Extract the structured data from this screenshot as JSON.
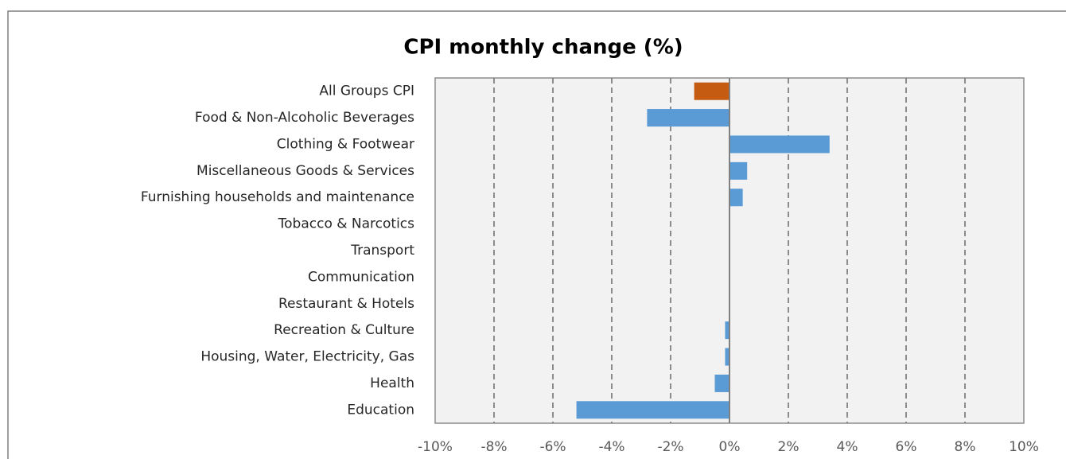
{
  "chart_data": {
    "type": "bar",
    "orientation": "horizontal",
    "title": "CPI monthly change (%)",
    "categories": [
      "All Groups CPI",
      "Food & Non-Alcoholic Beverages",
      "Clothing & Footwear",
      "Miscellaneous Goods & Services",
      "Furnishing households and maintenance",
      "Tobacco & Narcotics",
      "Transport",
      "Communication",
      "Restaurant & Hotels",
      "Recreation & Culture",
      "Housing, Water, Electricity, Gas",
      "Health",
      "Education"
    ],
    "values": [
      -1.2,
      -2.8,
      3.4,
      0.6,
      0.45,
      0,
      0,
      0,
      0,
      -0.15,
      -0.15,
      -0.5,
      -5.2
    ],
    "colors": [
      "#c55a11",
      "#5b9bd5",
      "#5b9bd5",
      "#5b9bd5",
      "#5b9bd5",
      "#5b9bd5",
      "#5b9bd5",
      "#5b9bd5",
      "#5b9bd5",
      "#5b9bd5",
      "#5b9bd5",
      "#5b9bd5",
      "#5b9bd5"
    ],
    "xlim": [
      -10,
      10
    ],
    "xticks": [
      {
        "value": -10,
        "label": "-10%"
      },
      {
        "value": -8,
        "label": "-8%"
      },
      {
        "value": -6,
        "label": "-6%"
      },
      {
        "value": -4,
        "label": "-4%"
      },
      {
        "value": -2,
        "label": "-2%"
      },
      {
        "value": 0,
        "label": "0%"
      },
      {
        "value": 2,
        "label": "2%"
      },
      {
        "value": 4,
        "label": "4%"
      },
      {
        "value": 6,
        "label": "6%"
      },
      {
        "value": 8,
        "label": "8%"
      },
      {
        "value": 10,
        "label": "10%"
      }
    ],
    "grid": true
  }
}
